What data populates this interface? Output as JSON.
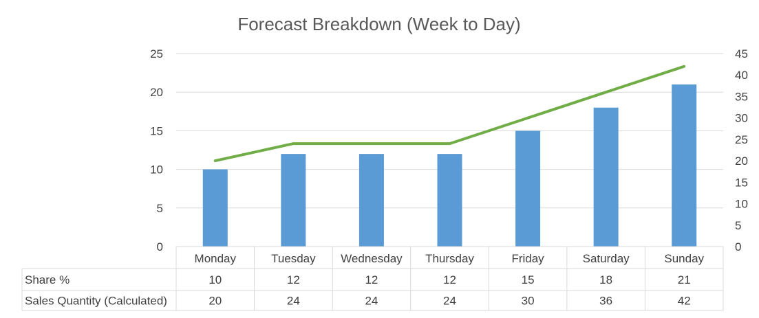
{
  "chart_data": {
    "type": "bar",
    "title": "Forecast Breakdown (Week to Day)",
    "categories": [
      "Monday",
      "Tuesday",
      "Wednesday",
      "Thursday",
      "Friday",
      "Saturday",
      "Sunday"
    ],
    "series": [
      {
        "name": "Share %",
        "type": "bar",
        "axis": "left",
        "color": "#5b9bd5",
        "values": [
          10,
          12,
          12,
          12,
          15,
          18,
          21
        ]
      },
      {
        "name": "Sales Quantity (Calculated)",
        "type": "line",
        "axis": "right",
        "color": "#70ad47",
        "values": [
          20,
          24,
          24,
          24,
          30,
          36,
          42
        ]
      }
    ],
    "y_left": {
      "min": 0,
      "max": 25,
      "step": 5,
      "ticks": [
        "0",
        "5",
        "10",
        "15",
        "20",
        "25"
      ]
    },
    "y_right": {
      "min": 0,
      "max": 45,
      "step": 5,
      "ticks": [
        "0",
        "5",
        "10",
        "15",
        "20",
        "25",
        "30",
        "35",
        "40",
        "45"
      ]
    },
    "grid": true,
    "data_table": true,
    "colors": {
      "gridline": "#d9d9d9",
      "table_border": "#d9d9d9",
      "text": "#404040",
      "title": "#595959"
    }
  }
}
